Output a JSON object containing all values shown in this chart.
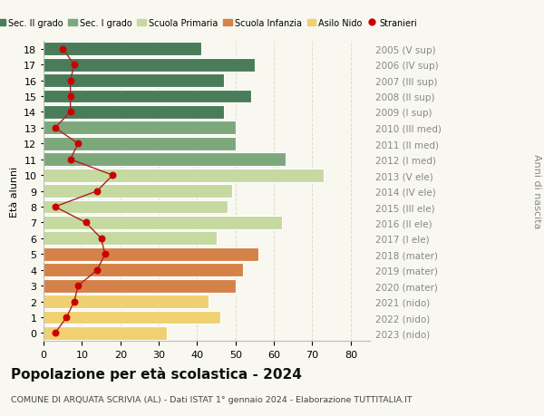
{
  "ages": [
    18,
    17,
    16,
    15,
    14,
    13,
    12,
    11,
    10,
    9,
    8,
    7,
    6,
    5,
    4,
    3,
    2,
    1,
    0
  ],
  "bar_values": [
    41,
    55,
    47,
    54,
    47,
    50,
    50,
    63,
    73,
    49,
    48,
    62,
    45,
    56,
    52,
    50,
    43,
    46,
    32
  ],
  "stranieri": [
    5,
    8,
    7,
    7,
    7,
    3,
    9,
    7,
    18,
    14,
    3,
    11,
    15,
    16,
    14,
    9,
    8,
    6,
    3
  ],
  "bar_colors": [
    "#4a7c59",
    "#4a7c59",
    "#4a7c59",
    "#4a7c59",
    "#4a7c59",
    "#7da87b",
    "#7da87b",
    "#7da87b",
    "#c5d9a0",
    "#c5d9a0",
    "#c5d9a0",
    "#c5d9a0",
    "#c5d9a0",
    "#d4824a",
    "#d4824a",
    "#d4824a",
    "#f0d070",
    "#f0d070",
    "#f0d070"
  ],
  "right_labels": [
    "2005 (V sup)",
    "2006 (IV sup)",
    "2007 (III sup)",
    "2008 (II sup)",
    "2009 (I sup)",
    "2010 (III med)",
    "2011 (II med)",
    "2012 (I med)",
    "2013 (V ele)",
    "2014 (IV ele)",
    "2015 (III ele)",
    "2016 (II ele)",
    "2017 (I ele)",
    "2018 (mater)",
    "2019 (mater)",
    "2020 (mater)",
    "2021 (nido)",
    "2022 (nido)",
    "2023 (nido)"
  ],
  "legend_labels": [
    "Sec. II grado",
    "Sec. I grado",
    "Scuola Primaria",
    "Scuola Infanzia",
    "Asilo Nido",
    "Stranieri"
  ],
  "legend_colors": [
    "#4a7c59",
    "#7da87b",
    "#c5d9a0",
    "#d4824a",
    "#f0d070",
    "#cc0000"
  ],
  "ylabel": "Età alunni",
  "right_ylabel": "Anni di nascita",
  "title": "Popolazione per età scolastica - 2024",
  "subtitle": "COMUNE DI ARQUATA SCRIVIA (AL) - Dati ISTAT 1° gennaio 2024 - Elaborazione TUTTITALIA.IT",
  "xlim": [
    0,
    85
  ],
  "ylim": [
    -0.5,
    18.5
  ],
  "stranieri_color": "#cc0000",
  "line_color": "#aa2222",
  "bg_color": "#f8f8f0",
  "grid_color": "#ddddcc",
  "label_color": "#888888"
}
